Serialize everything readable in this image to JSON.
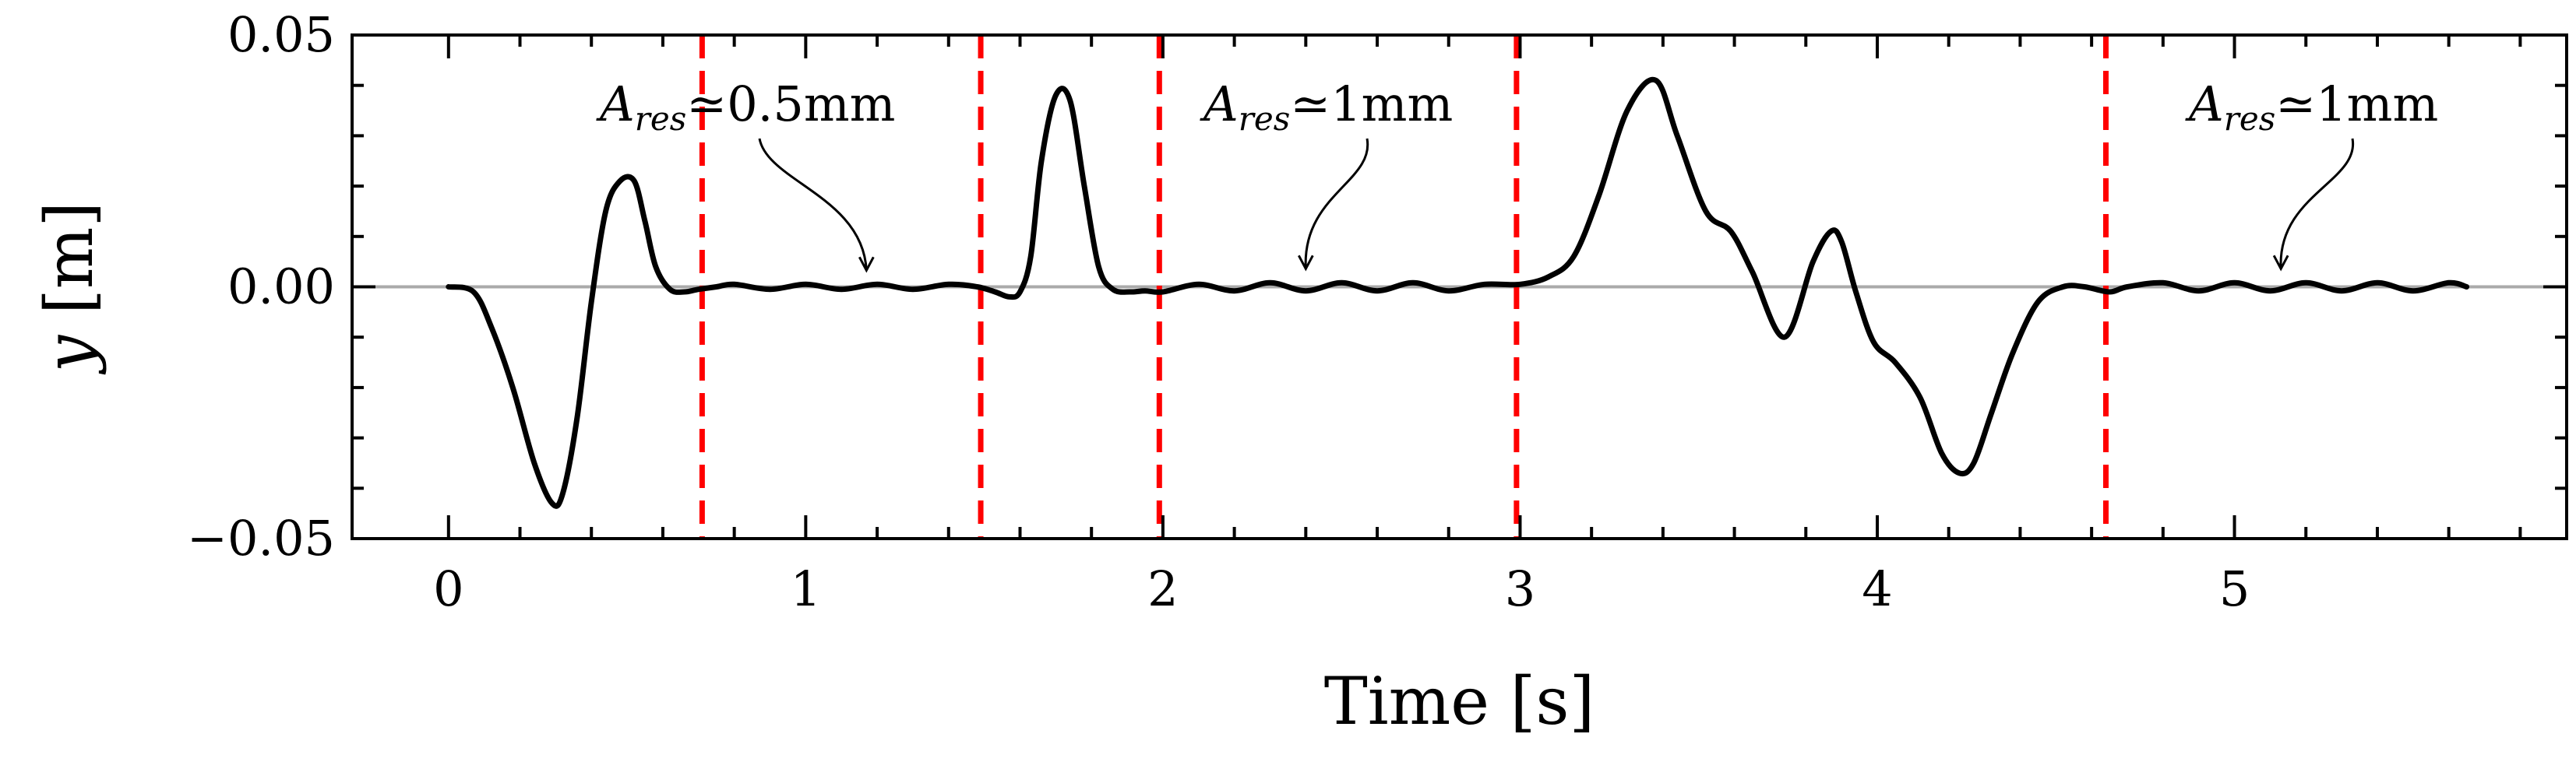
{
  "chart_data": {
    "type": "line",
    "title": "",
    "xlabel": "Time [s]",
    "ylabel": "y [m]",
    "xlim": [
      -0.27,
      5.93
    ],
    "ylim": [
      -0.05,
      0.05
    ],
    "xticks": [
      0,
      1,
      2,
      3,
      4,
      5
    ],
    "xtick_labels": [
      "0",
      "1",
      "2",
      "3",
      "4",
      "5"
    ],
    "yticks": [
      -0.05,
      0.0,
      0.05
    ],
    "ytick_labels": [
      "−0.05",
      "0.00",
      "0.05"
    ],
    "grid": false,
    "colors": {
      "signal": "#000000",
      "markers": "#ff0000",
      "baseline": "#aaaaaa"
    },
    "baseline_y": 0.0,
    "vertical_markers_x": [
      0.71,
      1.49,
      1.99,
      2.99,
      4.64
    ],
    "annotations": [
      {
        "symbol": "A",
        "subscript": "res",
        "rest": "≃0.5mm",
        "target": [
          1.17,
          0.0005
        ]
      },
      {
        "symbol": "A",
        "subscript": "res",
        "rest": "≃1mm",
        "target": [
          2.4,
          0.0008
        ]
      },
      {
        "symbol": "A",
        "subscript": "res",
        "rest": "≃1mm",
        "target": [
          5.13,
          0.0008
        ]
      }
    ],
    "series": [
      {
        "x": [
          0,
          0.07,
          0.12,
          0.18,
          0.24,
          0.29,
          0.32,
          0.36,
          0.4,
          0.44,
          0.48,
          0.52,
          0.55,
          0.58,
          0.62,
          0.66,
          0.7,
          0.75,
          0.8,
          0.9,
          1.0,
          1.1,
          1.2,
          1.3,
          1.4,
          1.48,
          1.53,
          1.57,
          1.6,
          1.63,
          1.66,
          1.7,
          1.74,
          1.78,
          1.82,
          1.86,
          1.91,
          1.95,
          2.0,
          2.1,
          2.2,
          2.3,
          2.4,
          2.5,
          2.6,
          2.7,
          2.8,
          2.9,
          3.0,
          3.08,
          3.15,
          3.22,
          3.3,
          3.38,
          3.44,
          3.52,
          3.59,
          3.65,
          3.74,
          3.82,
          3.87,
          3.9,
          3.94,
          3.99,
          4.05,
          4.12,
          4.18,
          4.23,
          4.27,
          4.32,
          4.38,
          4.45,
          4.52,
          4.58,
          4.65,
          4.7,
          4.8,
          4.9,
          5.0,
          5.1,
          5.2,
          5.3,
          5.4,
          5.5,
          5.6,
          5.65
        ],
        "y": [
          0.0,
          -0.001,
          -0.008,
          -0.02,
          -0.035,
          -0.043,
          -0.041,
          -0.026,
          -0.003,
          0.015,
          0.021,
          0.021,
          0.013,
          0.004,
          -0.0005,
          -0.001,
          -0.0005,
          0.0,
          0.0005,
          -0.0005,
          0.0005,
          -0.0005,
          0.0005,
          -0.0005,
          0.0005,
          0.0,
          -0.001,
          -0.002,
          -0.001,
          0.006,
          0.025,
          0.038,
          0.037,
          0.02,
          0.004,
          -0.0005,
          -0.001,
          -0.0008,
          -0.001,
          0.0005,
          -0.0008,
          0.0008,
          -0.0008,
          0.0008,
          -0.0008,
          0.0008,
          -0.0008,
          0.0005,
          0.0005,
          0.002,
          0.006,
          0.018,
          0.035,
          0.041,
          0.03,
          0.015,
          0.011,
          0.003,
          -0.01,
          0.005,
          0.011,
          0.009,
          -0.001,
          -0.011,
          -0.015,
          -0.022,
          -0.033,
          -0.037,
          -0.035,
          -0.025,
          -0.013,
          -0.003,
          0.0,
          0.0,
          -0.001,
          0.0,
          0.0008,
          -0.0008,
          0.0008,
          -0.0008,
          0.0008,
          -0.0008,
          0.0008,
          -0.0008,
          0.0008,
          0.0
        ]
      }
    ]
  }
}
